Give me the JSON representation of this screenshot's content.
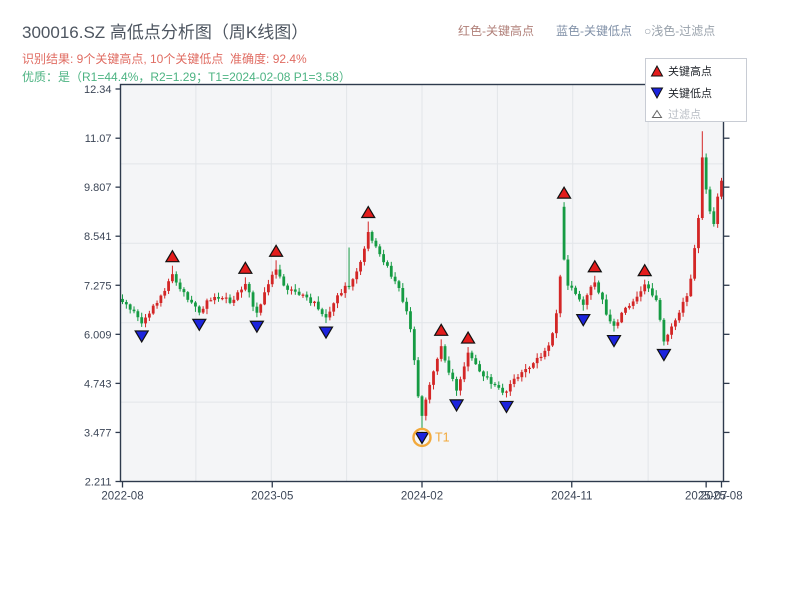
{
  "header": {
    "title": "300016.SZ 高低点分析图（周K线图）",
    "subtitle_result": "识别结果: 9个关键高点, 10个关键低点  准确度: 92.4%",
    "subtitle_quality": "优质：是（R1=44.4%，R2=1.29；T1=2024-02-08 P1=3.58）",
    "legend_high_label": "红色-关键高点",
    "legend_low_label": "蓝色-关键低点",
    "legend_filter_label": "○浅色-过滤点"
  },
  "legend_box": {
    "high": "关键高点",
    "low": "关键低点",
    "filtered": "过滤点"
  },
  "colors": {
    "candle_up": "#d32626",
    "candle_down": "#159b43",
    "marker_high": "#e31c1c",
    "marker_low": "#1c24dd",
    "marker_filtered_fill": "#ffffff",
    "marker_edge": "#111111",
    "t1_orange": "#f2a93b",
    "axis": "#2e3a4d",
    "tick_label": "#3c4657",
    "grid": "#e2e5e9",
    "plot_bg": "#f4f5f7",
    "legend_border": "#c8ccd4",
    "legend_text": "#1f2329",
    "legend_text_muted": "#b8bdc4"
  },
  "chart_data": {
    "type": "candlestick",
    "symbol": "300016.SZ",
    "period": "weekly",
    "title": "300016.SZ 高低点分析图（周K线图）",
    "stats": {
      "key_high_count": 9,
      "key_low_count": 10,
      "accuracy": "92.4%",
      "quality": "是",
      "R1": "44.4%",
      "R2": "1.29",
      "T1_date": "2024-02-08",
      "P1": "3.58"
    },
    "y_ticks": [
      "12.34",
      "11.07",
      "9.807",
      "8.541",
      "7.275",
      "6.009",
      "4.743",
      "3.477",
      "2.211"
    ],
    "y_range": [
      2.211,
      12.456
    ],
    "x_ticks": [
      {
        "label": "2022-08",
        "week": 0
      },
      {
        "label": "2023-05",
        "week": 39
      },
      {
        "label": "2024-02",
        "week": 78
      },
      {
        "label": "2024-11",
        "week": 117
      },
      {
        "label": "2025-07",
        "week": 152
      },
      {
        "label": "2025-08",
        "week": 156
      }
    ],
    "weeks_total": 157,
    "grid_cols": 8,
    "grid_rows": 5,
    "close_anchors": [
      [
        0,
        6.82
      ],
      [
        2,
        6.68
      ],
      [
        4,
        6.5
      ],
      [
        5,
        6.28
      ],
      [
        7,
        6.55
      ],
      [
        9,
        6.85
      ],
      [
        11,
        7.1
      ],
      [
        13,
        7.62
      ],
      [
        14,
        7.35
      ],
      [
        16,
        7.05
      ],
      [
        18,
        6.8
      ],
      [
        20,
        6.6
      ],
      [
        22,
        6.85
      ],
      [
        24,
        7.0
      ],
      [
        26,
        6.95
      ],
      [
        28,
        6.85
      ],
      [
        30,
        7.05
      ],
      [
        32,
        7.32
      ],
      [
        34,
        6.75
      ],
      [
        35,
        6.58
      ],
      [
        37,
        7.05
      ],
      [
        39,
        7.5
      ],
      [
        40,
        7.68
      ],
      [
        42,
        7.25
      ],
      [
        44,
        7.15
      ],
      [
        46,
        7.05
      ],
      [
        48,
        6.95
      ],
      [
        50,
        6.8
      ],
      [
        52,
        6.55
      ],
      [
        53,
        6.4
      ],
      [
        55,
        6.85
      ],
      [
        57,
        7.1
      ],
      [
        59,
        7.3
      ],
      [
        61,
        7.6
      ],
      [
        63,
        8.2
      ],
      [
        64,
        8.7
      ],
      [
        66,
        8.25
      ],
      [
        68,
        7.9
      ],
      [
        70,
        7.55
      ],
      [
        72,
        7.15
      ],
      [
        74,
        6.6
      ],
      [
        75,
        6.1
      ],
      [
        76,
        5.3
      ],
      [
        77,
        4.4
      ],
      [
        78,
        3.85
      ],
      [
        79,
        4.3
      ],
      [
        81,
        5.1
      ],
      [
        83,
        5.7
      ],
      [
        85,
        5.05
      ],
      [
        87,
        4.6
      ],
      [
        89,
        5.2
      ],
      [
        90,
        5.5
      ],
      [
        92,
        5.25
      ],
      [
        94,
        4.95
      ],
      [
        96,
        4.75
      ],
      [
        98,
        4.6
      ],
      [
        100,
        4.5
      ],
      [
        102,
        4.85
      ],
      [
        104,
        5.05
      ],
      [
        106,
        5.2
      ],
      [
        108,
        5.35
      ],
      [
        110,
        5.55
      ],
      [
        112,
        6.0
      ],
      [
        113,
        6.6
      ],
      [
        114,
        7.5
      ],
      [
        115,
        7.9
      ],
      [
        116,
        7.3
      ],
      [
        118,
        7.1
      ],
      [
        120,
        6.75
      ],
      [
        121,
        7.05
      ],
      [
        123,
        7.38
      ],
      [
        125,
        6.85
      ],
      [
        126,
        6.5
      ],
      [
        128,
        6.2
      ],
      [
        130,
        6.55
      ],
      [
        132,
        6.8
      ],
      [
        134,
        7.0
      ],
      [
        136,
        7.28
      ],
      [
        138,
        7.0
      ],
      [
        139,
        6.85
      ],
      [
        141,
        5.85
      ],
      [
        143,
        6.25
      ],
      [
        145,
        6.6
      ],
      [
        147,
        7.0
      ],
      [
        148,
        7.5
      ],
      [
        149,
        8.2
      ],
      [
        150,
        9.0
      ],
      [
        151,
        10.6
      ],
      [
        152,
        9.7
      ],
      [
        153,
        9.15
      ],
      [
        154,
        8.8
      ],
      [
        155,
        9.6
      ],
      [
        156,
        10.0
      ]
    ],
    "open_overrides": [
      [
        115,
        9.3
      ]
    ],
    "extra_wicks": [
      [
        59,
        8.25
      ],
      [
        151,
        11.25
      ]
    ],
    "key_highs": [
      {
        "week": 13,
        "price": 7.78
      },
      {
        "week": 32,
        "price": 7.48
      },
      {
        "week": 40,
        "price": 7.92
      },
      {
        "week": 64,
        "price": 8.92
      },
      {
        "week": 83,
        "price": 5.88
      },
      {
        "week": 90,
        "price": 5.68
      },
      {
        "week": 115,
        "price": 9.42
      },
      {
        "week": 123,
        "price": 7.52
      },
      {
        "week": 136,
        "price": 7.42
      }
    ],
    "key_lows": [
      {
        "week": 5,
        "price": 6.2
      },
      {
        "week": 20,
        "price": 6.5
      },
      {
        "week": 35,
        "price": 6.45
      },
      {
        "week": 53,
        "price": 6.3
      },
      {
        "week": 78,
        "price": 3.58
      },
      {
        "week": 87,
        "price": 4.42
      },
      {
        "week": 100,
        "price": 4.38
      },
      {
        "week": 120,
        "price": 6.62
      },
      {
        "week": 128,
        "price": 6.08
      },
      {
        "week": 141,
        "price": 5.72
      }
    ],
    "t1_marker": {
      "week": 78,
      "price": 3.58,
      "label": "T1"
    }
  }
}
